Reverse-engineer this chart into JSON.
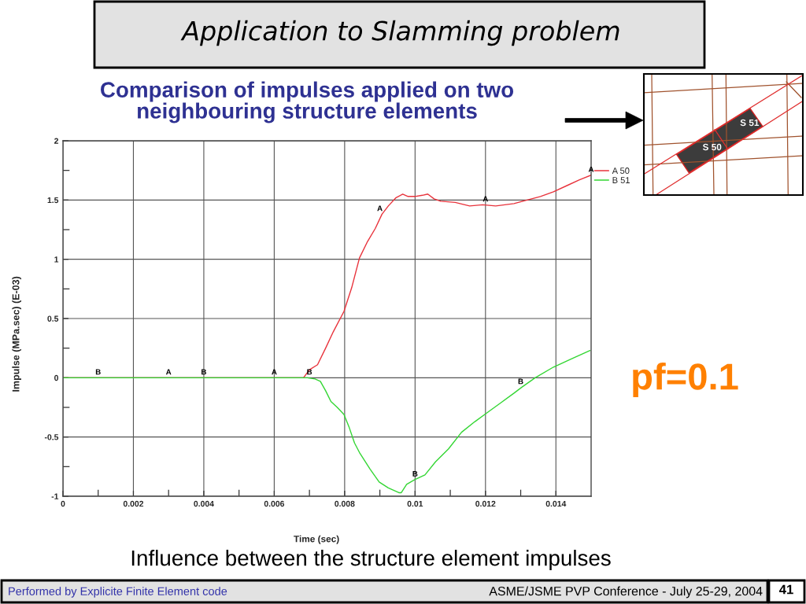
{
  "chart_data": {
    "type": "line",
    "title": "Application to Slamming problem",
    "subtitle": "Comparison of impulses applied on two\nneighbouring structure elements",
    "xlabel": "Time (sec)",
    "ylabel": "Impulse (MPa.sec) (E-03)",
    "xlim": [
      0,
      0.015
    ],
    "ylim": [
      -1,
      2
    ],
    "xticks": [
      0,
      {
        "value": 0.001,
        "label": null
      },
      0.002,
      {
        "value": 0.003,
        "label": null
      },
      0.004,
      {
        "value": 0.005,
        "label": null
      },
      0.006,
      {
        "value": 0.007,
        "label": null
      },
      0.008,
      {
        "value": 0.009,
        "label": null
      },
      0.01,
      {
        "value": 0.011,
        "label": null
      },
      0.012,
      {
        "value": 0.013,
        "label": null
      },
      0.014
    ],
    "yticks": [
      -1,
      {
        "value": -0.75,
        "label": null
      },
      -0.5,
      {
        "value": -0.25,
        "label": null
      },
      0,
      {
        "value": 0.25,
        "label": null
      },
      0.5,
      {
        "value": 0.75,
        "label": null
      },
      1,
      {
        "value": 1.25,
        "label": null
      },
      1.5,
      {
        "value": 1.75,
        "label": null
      },
      2
    ],
    "grid": true,
    "legend": "top right",
    "series": [
      {
        "name": "A 50",
        "color": "#e8333c",
        "x": [
          0,
          0.00683,
          0.00701,
          0.00723,
          0.00746,
          0.00768,
          0.00798,
          0.0082,
          0.00842,
          0.00865,
          0.00887,
          0.00906,
          0.00924,
          0.00946,
          0.00965,
          0.0098,
          0.00999,
          0.01021,
          0.01036,
          0.01054,
          0.01073,
          0.01114,
          0.01155,
          0.01192,
          0.01229,
          0.01281,
          0.01318,
          0.01356,
          0.01393,
          0.0143,
          0.01467,
          0.015
        ],
        "values": [
          0,
          0,
          0.07,
          0.11,
          0.25,
          0.39,
          0.56,
          0.76,
          1.01,
          1.15,
          1.26,
          1.38,
          1.45,
          1.52,
          1.55,
          1.53,
          1.53,
          1.54,
          1.55,
          1.51,
          1.49,
          1.48,
          1.45,
          1.46,
          1.45,
          1.47,
          1.5,
          1.53,
          1.57,
          1.62,
          1.67,
          1.71
        ]
      },
      {
        "name": "B 51",
        "color": "#33d633",
        "x": [
          0,
          0.0068,
          0.00694,
          0.00716,
          0.00731,
          0.00746,
          0.00761,
          0.00779,
          0.00798,
          0.00813,
          0.00828,
          0.00842,
          0.00872,
          0.00898,
          0.00924,
          0.00954,
          0.00961,
          0.00976,
          0.00999,
          0.01028,
          0.01058,
          0.01095,
          0.01132,
          0.0117,
          0.01207,
          0.01244,
          0.01281,
          0.01303,
          0.01341,
          0.01393,
          0.01445,
          0.01497
        ],
        "values": [
          0,
          0,
          0,
          -0.01,
          -0.03,
          -0.11,
          -0.2,
          -0.25,
          -0.31,
          -0.42,
          -0.55,
          -0.63,
          -0.77,
          -0.88,
          -0.93,
          -0.97,
          -0.97,
          -0.9,
          -0.86,
          -0.82,
          -0.71,
          -0.6,
          -0.46,
          -0.37,
          -0.29,
          -0.21,
          -0.13,
          -0.08,
          0,
          0.09,
          0.16,
          0.23
        ]
      }
    ],
    "annotations": [
      {
        "text": "A",
        "x": 0.003,
        "y": 0
      },
      {
        "text": "A",
        "x": 0.006,
        "y": 0
      },
      {
        "text": "A",
        "x": 0.009,
        "y": 1.38
      },
      {
        "text": "A",
        "x": 0.012,
        "y": 1.46
      },
      {
        "text": "A",
        "x": 0.015,
        "y": 1.71
      },
      {
        "text": "B",
        "x": 0.001,
        "y": 0
      },
      {
        "text": "B",
        "x": 0.004,
        "y": 0
      },
      {
        "text": "B",
        "x": 0.007,
        "y": 0
      },
      {
        "text": "B",
        "x": 0.01,
        "y": -0.86
      },
      {
        "text": "B",
        "x": 0.013,
        "y": -0.08
      },
      "pf=0.1",
      "Influence between the structure element impulses",
      "Performed by Explicite Finite Element code",
      "ASME/JSME PVP Conference - July 25-29, 2004",
      "41",
      "S 50",
      "S 51"
    ]
  }
}
